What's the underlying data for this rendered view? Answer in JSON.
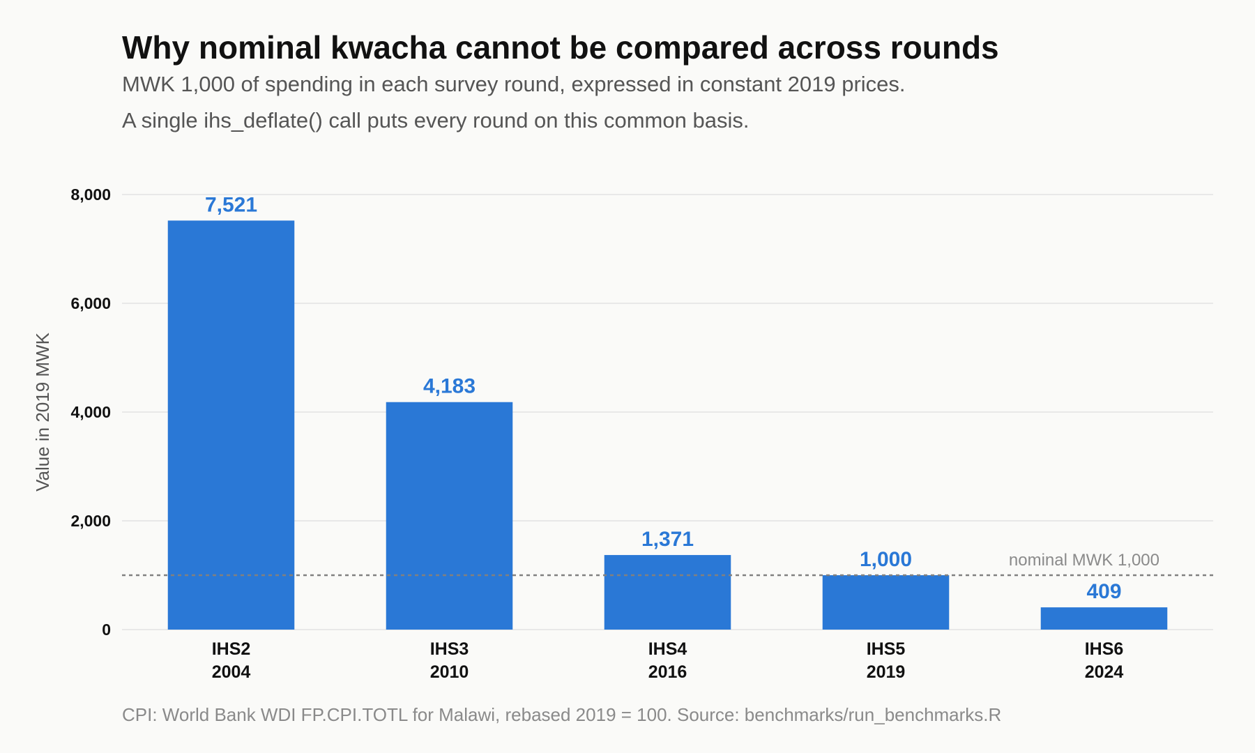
{
  "chart_data": {
    "type": "bar",
    "title": "Why nominal kwacha cannot be compared across rounds",
    "subtitle": [
      "MWK 1,000 of spending in each survey round, expressed in constant 2019 prices.",
      "A single ihs_deflate() call puts every round on this common basis."
    ],
    "xlabel": "",
    "ylabel": "Value in 2019 MWK",
    "ylim": [
      0,
      8000
    ],
    "yticks": [
      0,
      2000,
      4000,
      6000,
      8000
    ],
    "ytick_labels": [
      "0",
      "2,000",
      "4,000",
      "6,000",
      "8,000"
    ],
    "grid": true,
    "categories": [
      [
        "IHS2",
        "2004"
      ],
      [
        "IHS3",
        "2010"
      ],
      [
        "IHS4",
        "2016"
      ],
      [
        "IHS5",
        "2019"
      ],
      [
        "IHS6",
        "2024"
      ]
    ],
    "values": [
      7521,
      4183,
      1371,
      1000,
      409
    ],
    "value_labels": [
      "7,521",
      "4,183",
      "1,371",
      "1,000",
      "409"
    ],
    "bar_color": "#2a78d6",
    "reference_line": {
      "value": 1000,
      "label": "nominal MWK 1,000",
      "color": "#808080"
    },
    "caption": "CPI: World Bank WDI FP.CPI.TOTL for Malawi, rebased 2019 = 100. Source: benchmarks/run_benchmarks.R"
  }
}
